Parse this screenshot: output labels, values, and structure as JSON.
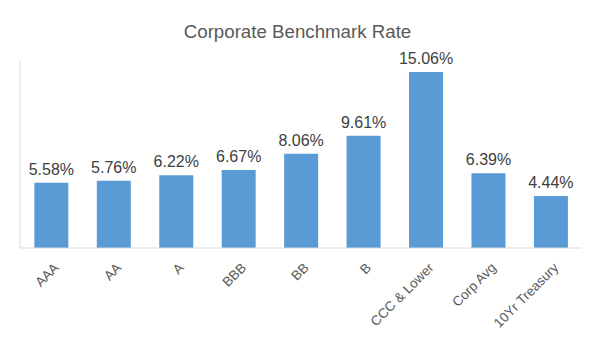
{
  "chart_data": {
    "type": "bar",
    "title": "Corporate Benchmark Rate",
    "categories": [
      "AAA",
      "AA",
      "A",
      "BBB",
      "BB",
      "B",
      "CCC & Lower",
      "Corp Avg",
      "10Yr Treasury"
    ],
    "values": [
      5.58,
      5.76,
      6.22,
      6.67,
      8.06,
      9.61,
      15.06,
      6.39,
      4.44
    ],
    "value_labels": [
      "5.58%",
      "5.76%",
      "6.22%",
      "6.67%",
      "8.06%",
      "9.61%",
      "15.06%",
      "6.39%",
      "4.44%"
    ],
    "color": "#5b9bd5",
    "ylim": [
      0,
      16
    ],
    "data_labels": true,
    "tick_labels": "x",
    "grid": false
  }
}
